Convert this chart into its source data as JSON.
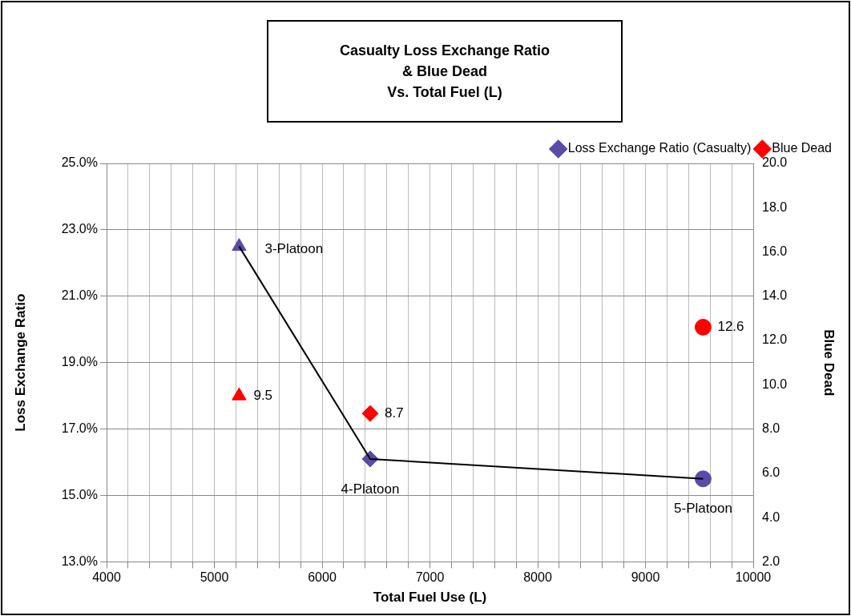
{
  "chart_data": {
    "type": "scatter",
    "title": "Casualty Loss Exchange Ratio\n& Blue Dead\nVs. Total Fuel (L)",
    "xlabel": "Total Fuel Use (L)",
    "ylabel": "Loss Exchange Ratio",
    "y2label": "Blue Dead",
    "x": [
      5230,
      6446,
      9535
    ],
    "series": [
      {
        "type": "line",
        "color": "#000000",
        "values": [
          22.5,
          16.1,
          15.5
        ],
        "marker": "none"
      },
      {
        "name": "Loss Exchange Ratio (Casualty)",
        "color": "#5b4aa6",
        "values": [
          22.5,
          16.1,
          15.5
        ],
        "marker": [
          "triangle",
          "diamond",
          "circle"
        ]
      },
      {
        "name": "Blue Dead",
        "color": "#ff0000",
        "axis": "y2",
        "values": [
          9.5,
          8.7,
          12.6
        ],
        "marker": [
          "triangle",
          "diamond",
          "circle"
        ],
        "value_labels": [
          "9.5",
          "8.7",
          "12.6"
        ]
      }
    ],
    "annotations": [
      {
        "text": "3-Platoon",
        "x": 5230,
        "y": 22.5
      },
      {
        "text": "4-Platoon",
        "x": 6446,
        "y": 16.1
      },
      {
        "text": "5-Platoon",
        "x": 9535,
        "y": 15.5
      }
    ],
    "xlim": [
      4000,
      10000
    ],
    "xticks": [
      4000,
      {
        "value": 4200,
        "label": null
      },
      {
        "value": 4400,
        "label": null
      },
      {
        "value": 4600,
        "label": null
      },
      {
        "value": 4800,
        "label": null
      },
      5000,
      {
        "value": 5200,
        "label": null
      },
      {
        "value": 5400,
        "label": null
      },
      {
        "value": 5600,
        "label": null
      },
      {
        "value": 5800,
        "label": null
      },
      6000,
      {
        "value": 6200,
        "label": null
      },
      {
        "value": 6400,
        "label": null
      },
      {
        "value": 6600,
        "label": null
      },
      {
        "value": 6800,
        "label": null
      },
      7000,
      {
        "value": 7200,
        "label": null
      },
      {
        "value": 7400,
        "label": null
      },
      {
        "value": 7600,
        "label": null
      },
      {
        "value": 7800,
        "label": null
      },
      8000,
      {
        "value": 8200,
        "label": null
      },
      {
        "value": 8400,
        "label": null
      },
      {
        "value": 8600,
        "label": null
      },
      {
        "value": 8800,
        "label": null
      },
      9000,
      {
        "value": 9200,
        "label": null
      },
      {
        "value": 9400,
        "label": null
      },
      {
        "value": 9600,
        "label": null
      },
      {
        "value": 9800,
        "label": null
      },
      10000
    ],
    "ylim": [
      13,
      25
    ],
    "yticks": [
      {
        "value": 13,
        "label": "13.0%"
      },
      {
        "value": 15,
        "label": "15.0%"
      },
      {
        "value": 17,
        "label": "17.0%"
      },
      {
        "value": 19,
        "label": "19.0%"
      },
      {
        "value": 21,
        "label": "21.0%"
      },
      {
        "value": 23,
        "label": "23.0%"
      },
      {
        "value": 25,
        "label": "25.0%"
      }
    ],
    "y2lim": [
      2,
      20
    ],
    "y2ticks": [
      {
        "value": 2,
        "label": "2.0"
      },
      {
        "value": 4,
        "label": "4.0"
      },
      {
        "value": 6,
        "label": "6.0"
      },
      {
        "value": 8,
        "label": "8.0"
      },
      {
        "value": 10,
        "label": "10.0"
      },
      {
        "value": 12,
        "label": "12.0"
      },
      {
        "value": 14,
        "label": "14.0"
      },
      {
        "value": 16,
        "label": "16.0"
      },
      {
        "value": 18,
        "label": "18.0"
      },
      {
        "value": 20,
        "label": "20.0"
      }
    ],
    "grid": true,
    "legend": "top right"
  }
}
